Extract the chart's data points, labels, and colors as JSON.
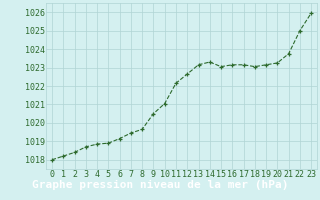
{
  "x_full": [
    0,
    1,
    2,
    3,
    4,
    5,
    6,
    7,
    8,
    9,
    10,
    11,
    12,
    13,
    14,
    15,
    16,
    17,
    18,
    19,
    20,
    21,
    22,
    23
  ],
  "y_values": [
    1018.0,
    1018.2,
    1018.4,
    1018.7,
    1018.85,
    1018.9,
    1019.15,
    1019.45,
    1019.65,
    1020.5,
    1021.05,
    1022.15,
    1022.65,
    1023.15,
    1023.3,
    1023.05,
    1023.15,
    1023.15,
    1023.05,
    1023.15,
    1023.25,
    1023.75,
    1025.0,
    1025.95
  ],
  "ylim": [
    1017.5,
    1026.5
  ],
  "yticks": [
    1018,
    1019,
    1020,
    1021,
    1022,
    1023,
    1024,
    1025,
    1026
  ],
  "xticks": [
    0,
    1,
    2,
    3,
    4,
    5,
    6,
    7,
    8,
    9,
    10,
    11,
    12,
    13,
    14,
    15,
    16,
    17,
    18,
    19,
    20,
    21,
    22,
    23
  ],
  "xlabel": "Graphe pression niveau de la mer (hPa)",
  "line_color": "#2d6a2d",
  "marker_color": "#2d6a2d",
  "bg_color": "#d4f0f0",
  "grid_color": "#b0d4d4",
  "label_bar_color": "#2d6a2d",
  "label_text_color": "#ffffff",
  "tick_label_fontsize": 6.0,
  "xlabel_fontsize": 8.0
}
